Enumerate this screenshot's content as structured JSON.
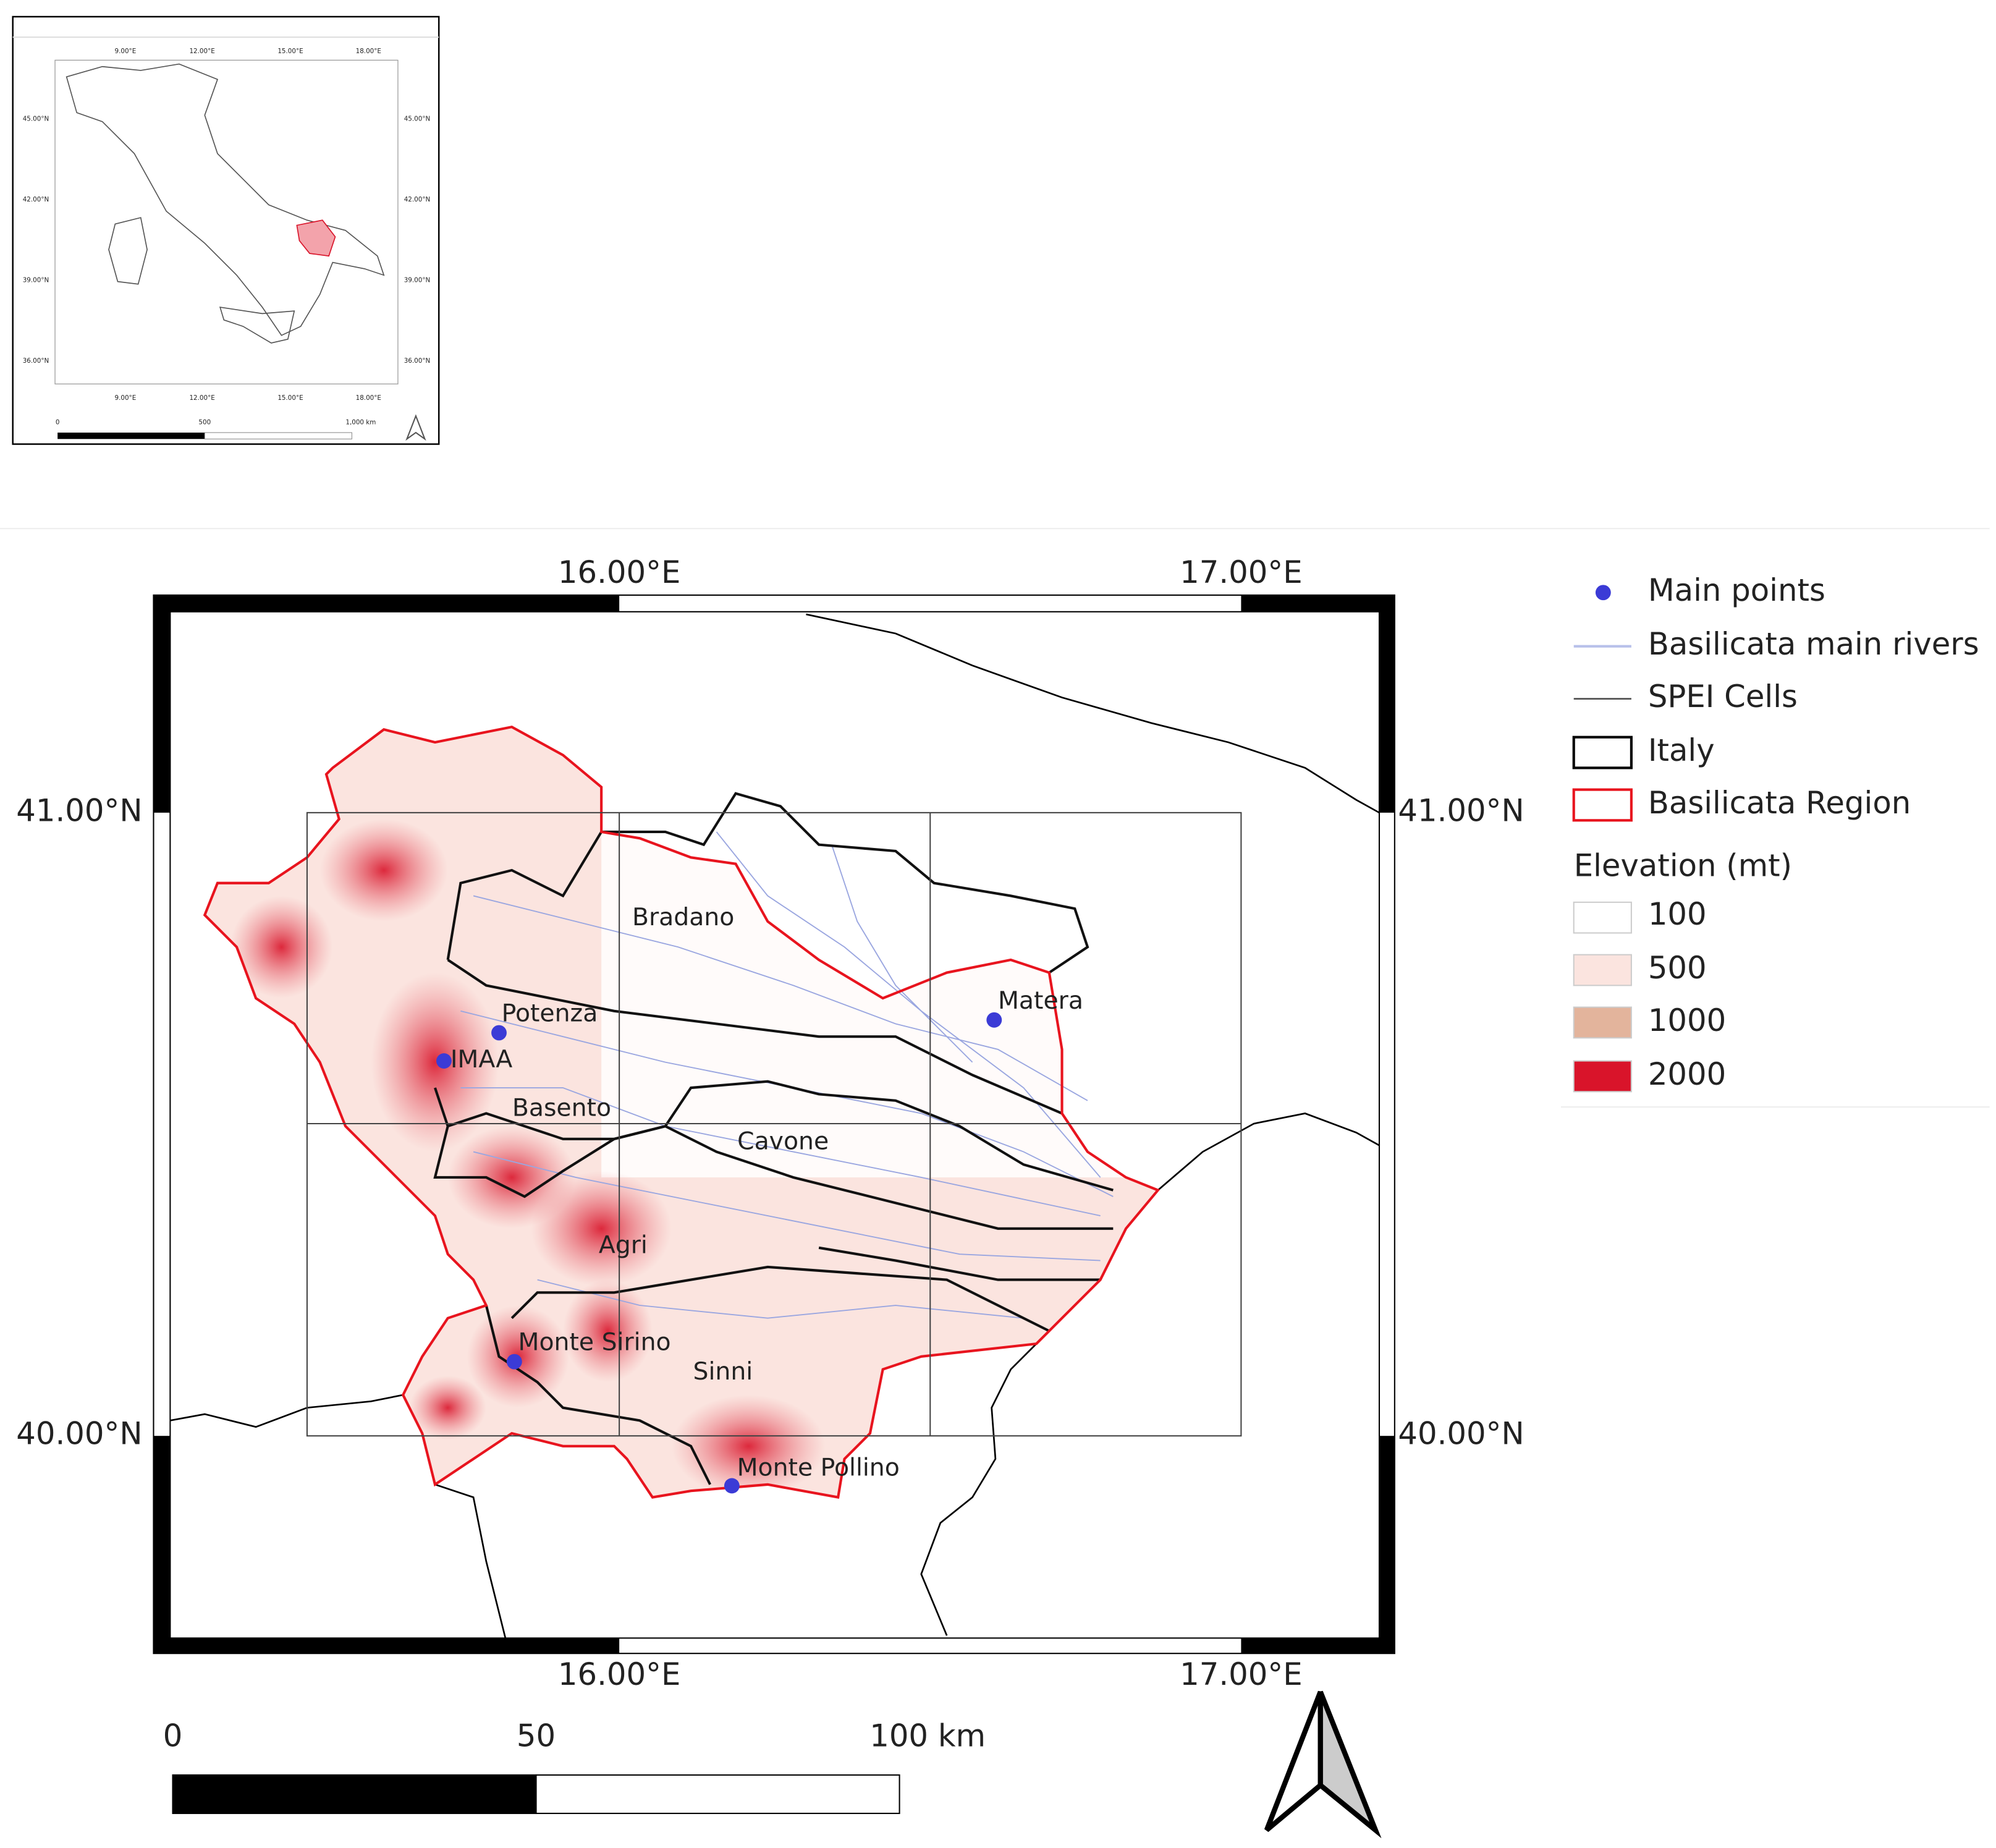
{
  "inset": {
    "lon_labels_top": [
      "9.00°E",
      "12.00°E",
      "15.00°E",
      "18.00°E"
    ],
    "lon_labels_bottom": [
      "9.00°E",
      "12.00°E",
      "15.00°E",
      "18.00°E"
    ],
    "lat_labels_left": [
      "45.00°N",
      "42.00°N",
      "39.00°N",
      "36.00°N"
    ],
    "lat_labels_right": [
      "45.00°N",
      "42.00°N",
      "39.00°N",
      "36.00°N"
    ],
    "scale_labels": [
      "0",
      "500",
      "1,000 km"
    ]
  },
  "map": {
    "lon_labels_top": [
      "16.00°E",
      "17.00°E"
    ],
    "lon_labels_bottom": [
      "16.00°E",
      "17.00°E"
    ],
    "lat_labels_left": [
      "41.00°N",
      "40.00°N"
    ],
    "lat_labels_right": [
      "41.00°N",
      "40.00°N"
    ],
    "rivers": [
      "Bradano",
      "Basento",
      "Cavone",
      "Agri",
      "Sinni"
    ],
    "points": [
      "Potenza",
      "IMAA",
      "Matera",
      "Monte Sirino",
      "Monte Pollino"
    ],
    "scale_labels": [
      "0",
      "50",
      "100 km"
    ]
  },
  "legend": {
    "items": [
      "Main points",
      "Basilicata main rivers",
      "SPEI Cells",
      "Italy",
      "Basilicata Region"
    ],
    "elevation_title": "Elevation (mt)",
    "elevation_classes": [
      "100",
      "500",
      "1000",
      "2000"
    ]
  }
}
